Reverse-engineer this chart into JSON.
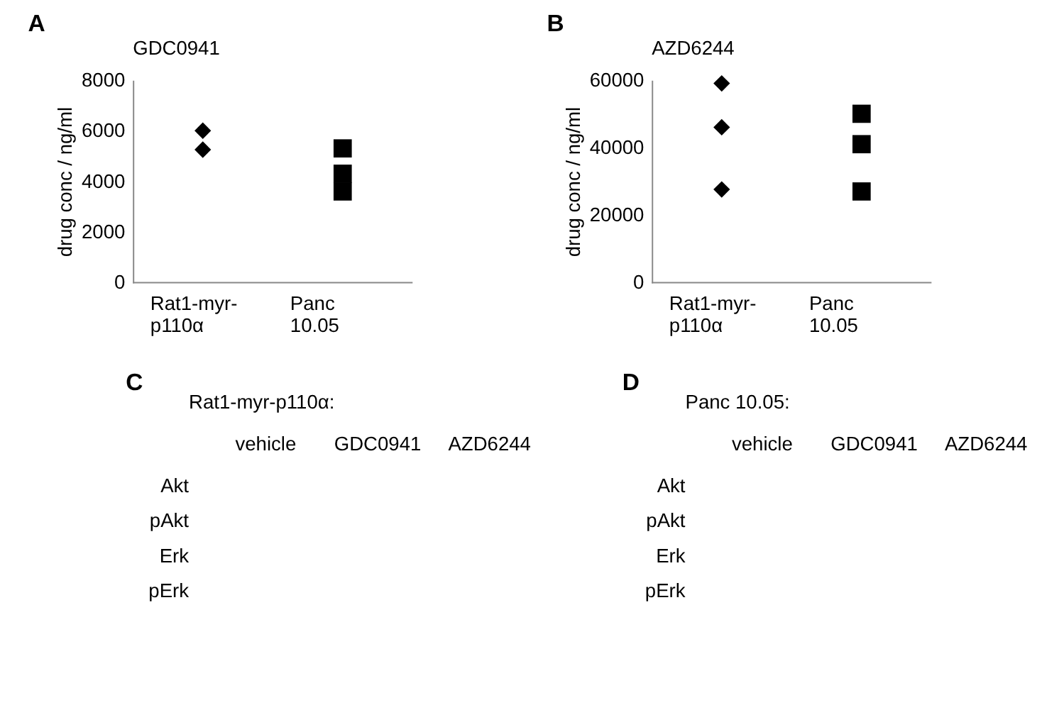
{
  "chart_data": [
    {
      "type": "scatter",
      "title": "GDC0941",
      "ylabel": "drug conc / ng/ml",
      "annotations": [
        "A"
      ],
      "categories": [
        "Rat1-myr-p110α",
        "Panc 10.05"
      ],
      "ylim": [
        0,
        8000
      ],
      "yticks": [
        0,
        2000,
        4000,
        6000,
        8000
      ],
      "grid": false,
      "series": [
        {
          "color": "#000000",
          "marker": "diamond",
          "x": [
            "Rat1-myr-p110α",
            "Rat1-myr-p110α"
          ],
          "values": [
            6000,
            5250
          ]
        },
        {
          "color": "#000000",
          "marker": "square",
          "x": [
            "Panc 10.05",
            "Panc 10.05",
            "Panc 10.05"
          ],
          "values": [
            5300,
            4300,
            3600
          ]
        }
      ]
    },
    {
      "type": "scatter",
      "title": "AZD6244",
      "ylabel": "drug conc / ng/ml",
      "annotations": [
        "B"
      ],
      "categories": [
        "Rat1-myr-p110α",
        "Panc 10.05"
      ],
      "ylim": [
        0,
        60000
      ],
      "yticks": [
        0,
        20000,
        40000,
        60000
      ],
      "grid": false,
      "series": [
        {
          "color": "#000000",
          "marker": "diamond",
          "x": [
            "Rat1-myr-p110α",
            "Rat1-myr-p110α",
            "Rat1-myr-p110α"
          ],
          "values": [
            59000,
            46000,
            27600
          ]
        },
        {
          "color": "#000000",
          "marker": "square",
          "x": [
            "Panc 10.05",
            "Panc 10.05",
            "Panc 10.05"
          ],
          "values": [
            50000,
            41000,
            27000
          ]
        }
      ]
    },
    {
      "type": "other",
      "title": "Rat1-myr-p110α:",
      "annotations": [
        "C",
        "vehicle",
        "GDC0941",
        "AZD6244",
        "Akt",
        "pAkt",
        "Erk",
        "pErk"
      ]
    },
    {
      "type": "other",
      "title": "Panc 10.05:",
      "annotations": [
        "D",
        "vehicle",
        "GDC0941",
        "AZD6244",
        "Akt",
        "pAkt",
        "Erk",
        "pErk"
      ]
    }
  ]
}
